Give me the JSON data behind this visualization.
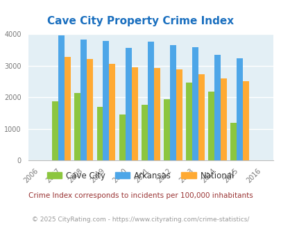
{
  "title": "Cave City Property Crime Index",
  "years": [
    2006,
    2007,
    2008,
    2009,
    2010,
    2011,
    2012,
    2013,
    2014,
    2015,
    2016
  ],
  "bar_years": [
    2007,
    2008,
    2009,
    2010,
    2011,
    2012,
    2013,
    2014,
    2015
  ],
  "cave_city": [
    1880,
    2130,
    1700,
    1450,
    1770,
    1940,
    2470,
    2190,
    1200
  ],
  "arkansas": [
    3970,
    3830,
    3780,
    3560,
    3760,
    3650,
    3600,
    3360,
    3250
  ],
  "national": [
    3280,
    3210,
    3060,
    2960,
    2940,
    2880,
    2740,
    2610,
    2510
  ],
  "cave_city_color": "#8CC63F",
  "arkansas_color": "#4DA6E8",
  "national_color": "#FFAA33",
  "bg_color": "#E3EFF5",
  "title_color": "#1A6FBF",
  "ylim": [
    0,
    4000
  ],
  "yticks": [
    0,
    1000,
    2000,
    3000,
    4000
  ],
  "subtitle": "Crime Index corresponds to incidents per 100,000 inhabitants",
  "footer": "© 2025 CityRating.com - https://www.cityrating.com/crime-statistics/",
  "subtitle_color": "#993333",
  "footer_color": "#999999",
  "legend_labels": [
    "Cave City",
    "Arkansas",
    "National"
  ]
}
